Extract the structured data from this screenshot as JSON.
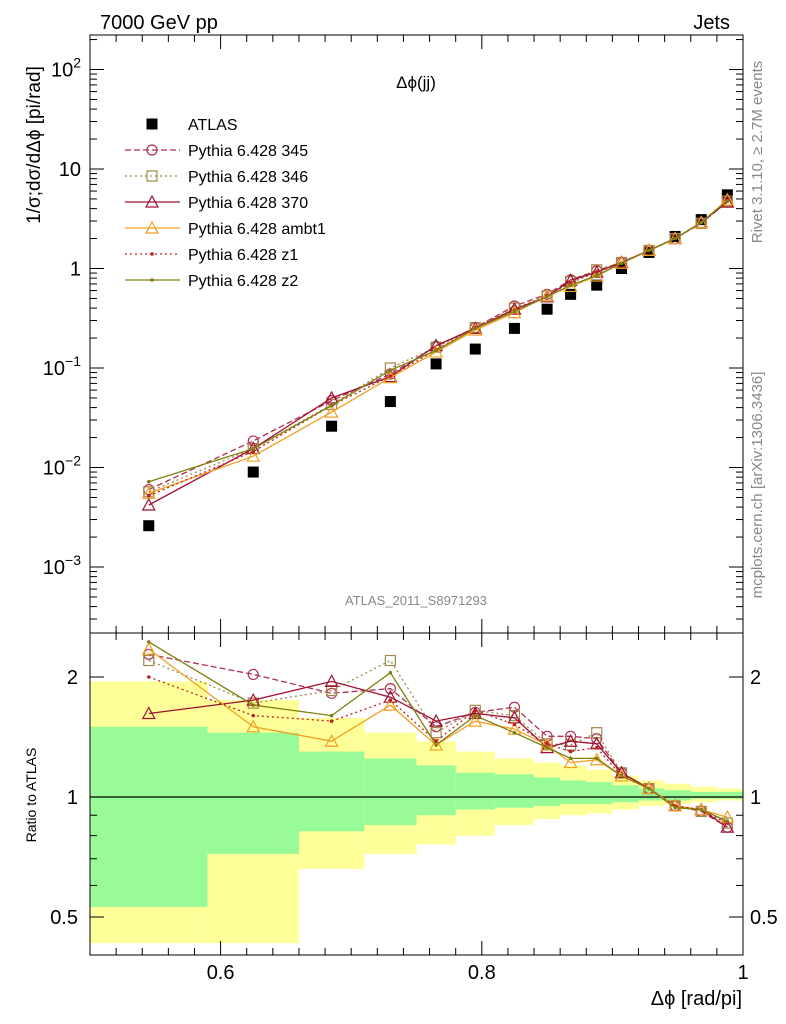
{
  "header": {
    "left": "7000 GeV pp",
    "right": "Jets"
  },
  "side_labels": {
    "right_top": "Rivet 3.1.10, ≥ 2.7M events",
    "right_bottom": "mcplots.cern.ch [arXiv:1306.3436]"
  },
  "colors": {
    "atlas": "#000000",
    "p345": "#b03050",
    "p346": "#a0884a",
    "p370": "#a01030",
    "ambt1": "#f0a020",
    "z1": "#c02020",
    "z2": "#808010",
    "band_green": "#98fb98",
    "band_yellow": "#ffff99"
  },
  "chart_data": [
    {
      "type": "scatter",
      "title": "Δϕ(jj)",
      "ylabel": "1/σ;dσ/dΔϕ [pi/rad]",
      "xlabel": "",
      "yscale": "log",
      "xlim": [
        0.5,
        1.0
      ],
      "ylim": [
        0.0003,
        200
      ],
      "yticks": [
        "10^{-3}",
        "10^{-2}",
        "10^{-1}",
        "1",
        "10",
        "10^{2}"
      ],
      "watermark": "ATLAS_2011_S8971293",
      "legend_position": "top-left",
      "x": [
        0.545,
        0.625,
        0.685,
        0.73,
        0.765,
        0.795,
        0.825,
        0.85,
        0.868,
        0.888,
        0.907,
        0.928,
        0.948,
        0.968,
        0.988
      ],
      "series": [
        {
          "name": "ATLAS",
          "style": "data",
          "values": [
            0.0026,
            0.009,
            0.026,
            0.046,
            0.11,
            0.155,
            0.25,
            0.39,
            0.55,
            0.68,
            1.0,
            1.45,
            2.1,
            3.1,
            5.5
          ]
        },
        {
          "name": "Pythia 6.428 345",
          "style": "circle-dashed",
          "values": [
            0.006,
            0.0185,
            0.047,
            0.087,
            0.165,
            0.255,
            0.42,
            0.55,
            0.77,
            0.95,
            1.15,
            1.52,
            2.0,
            2.85,
            4.65
          ]
        },
        {
          "name": "Pythia 6.428 346",
          "style": "square-dotted",
          "values": [
            0.0057,
            0.0155,
            0.043,
            0.1,
            0.162,
            0.255,
            0.4,
            0.53,
            0.74,
            0.97,
            1.15,
            1.52,
            2.0,
            2.85,
            4.75
          ]
        },
        {
          "name": "Pythia 6.428 370",
          "style": "triangle-solid",
          "values": [
            0.0042,
            0.0155,
            0.05,
            0.082,
            0.168,
            0.25,
            0.39,
            0.52,
            0.76,
            0.92,
            1.15,
            1.52,
            2.0,
            2.9,
            4.65
          ]
        },
        {
          "name": "Pythia 6.428 ambt1",
          "style": "triangle-solid-light",
          "values": [
            0.0055,
            0.013,
            0.036,
            0.08,
            0.145,
            0.24,
            0.36,
            0.53,
            0.66,
            0.84,
            1.13,
            1.52,
            2.0,
            2.9,
            4.9
          ]
        },
        {
          "name": "Pythia 6.428 z1",
          "style": "dot-dotted",
          "values": [
            0.0052,
            0.0145,
            0.042,
            0.083,
            0.152,
            0.255,
            0.38,
            0.53,
            0.72,
            0.92,
            1.13,
            1.52,
            2.0,
            2.9,
            4.75
          ]
        },
        {
          "name": "Pythia 6.428 z2",
          "style": "dot-solid",
          "values": [
            0.0072,
            0.0155,
            0.042,
            0.095,
            0.15,
            0.25,
            0.37,
            0.52,
            0.68,
            0.85,
            1.13,
            1.52,
            2.0,
            2.9,
            4.8
          ]
        }
      ]
    },
    {
      "type": "scatter",
      "ylabel": "Ratio to ATLAS",
      "xlabel": "Δϕ [rad/pi]",
      "yscale": "log",
      "xlim": [
        0.5,
        1.0
      ],
      "ylim": [
        0.43,
        2.35
      ],
      "yticks": [
        0.5,
        1,
        2
      ],
      "xticks": [
        0.6,
        0.8,
        1
      ],
      "bands": {
        "edges": [
          0.5,
          0.59,
          0.66,
          0.71,
          0.75,
          0.78,
          0.81,
          0.84,
          0.86,
          0.88,
          0.9,
          0.92,
          0.94,
          0.96,
          0.98,
          1.0
        ],
        "green": [
          [
            0.53,
            1.5
          ],
          [
            0.72,
            1.45
          ],
          [
            0.82,
            1.3
          ],
          [
            0.85,
            1.25
          ],
          [
            0.9,
            1.2
          ],
          [
            0.93,
            1.15
          ],
          [
            0.94,
            1.14
          ],
          [
            0.95,
            1.12
          ],
          [
            0.96,
            1.1
          ],
          [
            0.96,
            1.09
          ],
          [
            0.97,
            1.07
          ],
          [
            0.98,
            1.05
          ],
          [
            0.98,
            1.04
          ],
          [
            0.99,
            1.03
          ],
          [
            0.99,
            1.03
          ]
        ],
        "yellow": [
          [
            0.43,
            1.95
          ],
          [
            0.43,
            1.75
          ],
          [
            0.66,
            1.58
          ],
          [
            0.72,
            1.45
          ],
          [
            0.76,
            1.38
          ],
          [
            0.8,
            1.3
          ],
          [
            0.85,
            1.25
          ],
          [
            0.88,
            1.22
          ],
          [
            0.9,
            1.2
          ],
          [
            0.91,
            1.17
          ],
          [
            0.93,
            1.13
          ],
          [
            0.95,
            1.1
          ],
          [
            0.96,
            1.08
          ],
          [
            0.97,
            1.06
          ],
          [
            0.98,
            1.05
          ]
        ]
      },
      "x": [
        0.545,
        0.625,
        0.685,
        0.73,
        0.765,
        0.795,
        0.825,
        0.85,
        0.868,
        0.888,
        0.907,
        0.928,
        0.948,
        0.968,
        0.988
      ],
      "series": [
        {
          "name": "Pythia 6.428 345",
          "style": "circle-dashed",
          "values": [
            2.28,
            2.03,
            1.82,
            1.87,
            1.5,
            1.63,
            1.68,
            1.42,
            1.42,
            1.4,
            1.15,
            1.05,
            0.95,
            0.92,
            0.84
          ]
        },
        {
          "name": "Pythia 6.428 346",
          "style": "square-dotted",
          "values": [
            2.2,
            1.72,
            1.85,
            2.2,
            1.45,
            1.65,
            1.6,
            1.36,
            1.35,
            1.45,
            1.15,
            1.05,
            0.95,
            0.92,
            0.86
          ]
        },
        {
          "name": "Pythia 6.428 370",
          "style": "triangle-solid",
          "values": [
            1.62,
            1.75,
            1.95,
            1.78,
            1.55,
            1.62,
            1.58,
            1.33,
            1.38,
            1.36,
            1.15,
            1.05,
            0.95,
            0.93,
            0.84
          ]
        },
        {
          "name": "Pythia 6.428 ambt1",
          "style": "triangle-solid-light",
          "values": [
            2.35,
            1.5,
            1.38,
            1.7,
            1.35,
            1.55,
            1.48,
            1.35,
            1.22,
            1.24,
            1.13,
            1.05,
            0.95,
            0.93,
            0.89
          ]
        },
        {
          "name": "Pythia 6.428 z1",
          "style": "dot-dotted",
          "values": [
            2.0,
            1.6,
            1.55,
            1.75,
            1.38,
            1.65,
            1.52,
            1.36,
            1.3,
            1.33,
            1.13,
            1.05,
            0.95,
            0.93,
            0.86
          ]
        },
        {
          "name": "Pythia 6.428 z2",
          "style": "dot-solid",
          "values": [
            2.45,
            1.7,
            1.6,
            2.05,
            1.35,
            1.6,
            1.45,
            1.33,
            1.25,
            1.25,
            1.13,
            1.05,
            0.94,
            0.93,
            0.87
          ]
        }
      ]
    }
  ]
}
